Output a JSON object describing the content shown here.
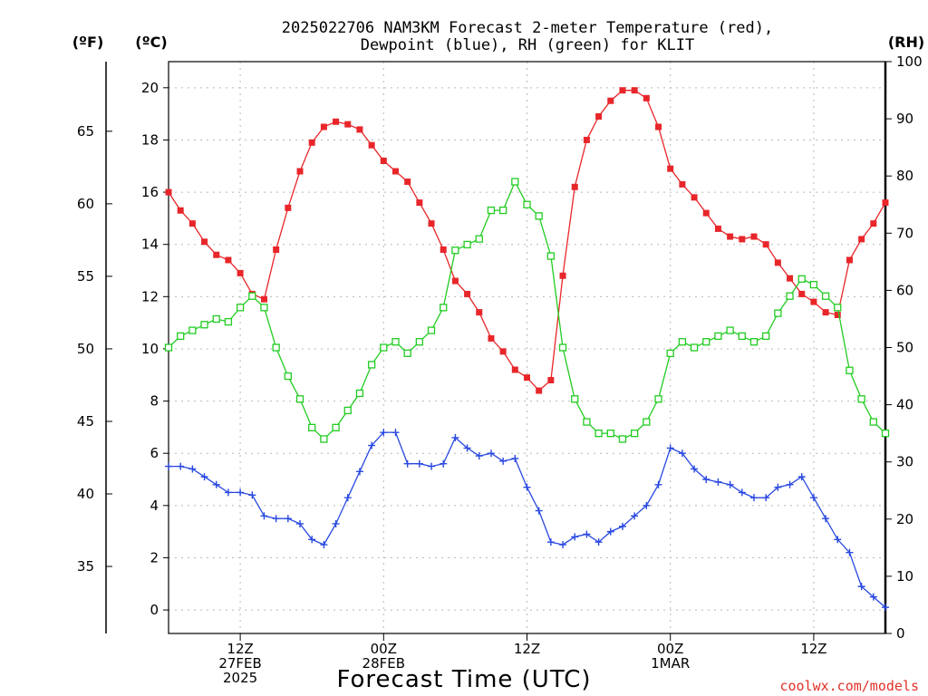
{
  "title_line1": "2025022706 NAM3KM Forecast 2-meter Temperature (red),",
  "title_line2": "Dewpoint (blue), RH (green) for KLIT",
  "unit_f": "(ºF)",
  "unit_c": "(ºC)",
  "unit_rh": "(RH)",
  "xlabel": "Forecast Time (UTC)",
  "credit": "coolwx.com/models",
  "chart_data": {
    "type": "line",
    "x_hours": [
      0,
      1,
      2,
      3,
      4,
      5,
      6,
      7,
      8,
      9,
      10,
      11,
      12,
      13,
      14,
      15,
      16,
      17,
      18,
      19,
      20,
      21,
      22,
      23,
      24,
      25,
      26,
      27,
      28,
      29,
      30,
      31,
      32,
      33,
      34,
      35,
      36,
      37,
      38,
      39,
      40,
      41,
      42,
      43,
      44,
      45,
      46,
      47,
      48,
      49,
      50,
      51,
      52,
      53,
      54,
      55,
      56,
      57,
      58,
      59,
      60
    ],
    "x_tick_labels": [
      {
        "hour": 6,
        "lines": [
          "12Z",
          "27FEB",
          "2025"
        ]
      },
      {
        "hour": 18,
        "lines": [
          "00Z",
          "28FEB"
        ]
      },
      {
        "hour": 30,
        "lines": [
          "12Z"
        ]
      },
      {
        "hour": 42,
        "lines": [
          "00Z",
          "1MAR"
        ]
      },
      {
        "hour": 54,
        "lines": [
          "12Z"
        ]
      }
    ],
    "ylim_c": [
      -0.9,
      21
    ],
    "yticks_c": [
      0,
      2,
      4,
      6,
      8,
      10,
      12,
      14,
      16,
      18,
      20
    ],
    "yticks_f": [
      35,
      40,
      45,
      50,
      55,
      60,
      65
    ],
    "ylim_rh": [
      0,
      100
    ],
    "yticks_rh": [
      0,
      10,
      20,
      30,
      40,
      50,
      60,
      70,
      80,
      90,
      100
    ],
    "grid": true,
    "series": [
      {
        "name": "Temperature",
        "axis": "c",
        "color": "#e8262a",
        "marker": "filled-square",
        "values": [
          16.0,
          15.3,
          14.8,
          14.1,
          13.6,
          13.4,
          12.9,
          12.1,
          11.9,
          13.8,
          15.4,
          16.8,
          17.9,
          18.5,
          18.7,
          18.6,
          18.4,
          17.8,
          17.2,
          16.8,
          16.4,
          15.6,
          14.8,
          13.8,
          12.6,
          12.1,
          11.4,
          10.4,
          9.9,
          9.2,
          8.9,
          8.4,
          8.8,
          12.8,
          16.2,
          18.0,
          18.9,
          19.5,
          19.9,
          19.9,
          19.6,
          18.5,
          16.9,
          16.3,
          15.8,
          15.2,
          14.6,
          14.3,
          14.2,
          14.3,
          14.0,
          13.3,
          12.7,
          12.1,
          11.8,
          11.4,
          11.3,
          13.4,
          14.2,
          14.8,
          15.6
        ]
      },
      {
        "name": "Dewpoint",
        "axis": "c",
        "color": "#2848e0",
        "marker": "plus",
        "values": [
          5.5,
          5.5,
          5.4,
          5.1,
          4.8,
          4.5,
          4.5,
          4.4,
          3.6,
          3.5,
          3.5,
          3.3,
          2.7,
          2.5,
          3.3,
          4.3,
          5.3,
          6.3,
          6.8,
          6.8,
          5.6,
          5.6,
          5.5,
          5.6,
          6.6,
          6.2,
          5.9,
          6.0,
          5.7,
          5.8,
          4.7,
          3.8,
          2.6,
          2.5,
          2.8,
          2.9,
          2.6,
          3.0,
          3.2,
          3.6,
          4.0,
          4.8,
          6.2,
          6.0,
          5.4,
          5.0,
          4.9,
          4.8,
          4.5,
          4.3,
          4.3,
          4.7,
          4.8,
          5.1,
          4.3,
          3.5,
          2.7,
          2.2,
          0.9,
          0.5,
          0.1
        ]
      },
      {
        "name": "RH",
        "axis": "rh",
        "color": "#22cc22",
        "marker": "open-square",
        "values": [
          50,
          52,
          53,
          54,
          55,
          54.5,
          57,
          59,
          57,
          50,
          45,
          41,
          36,
          34,
          36,
          39,
          42,
          47,
          50,
          51,
          49,
          51,
          53,
          57,
          67,
          68,
          69,
          74,
          74,
          79,
          75,
          73,
          66,
          50,
          41,
          37,
          35,
          35,
          34,
          35,
          37,
          41,
          49,
          51,
          50,
          51,
          52,
          53,
          52,
          51,
          52,
          56,
          59,
          62,
          61,
          59,
          57,
          46,
          41,
          37,
          35
        ]
      }
    ]
  }
}
